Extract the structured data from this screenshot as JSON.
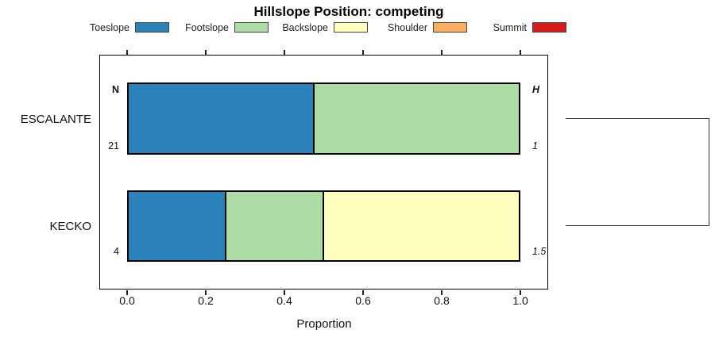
{
  "chart_data": {
    "type": "bar",
    "orientation": "horizontal",
    "stacked": true,
    "title": "Hillslope Position: competing",
    "xlabel": "Proportion",
    "xlim": [
      0,
      1
    ],
    "x_ticks": [
      0.0,
      0.2,
      0.4,
      0.6,
      0.8,
      1.0
    ],
    "x_tick_labels": [
      "0.0",
      "0.2",
      "0.4",
      "0.6",
      "0.8",
      "1.0"
    ],
    "grid": "off",
    "legend_position": "top",
    "categories": [
      "ESCALANTE",
      "KECKO"
    ],
    "series": [
      {
        "name": "Toeslope",
        "color": "#2B83BA",
        "values": [
          0.476,
          0.25
        ]
      },
      {
        "name": "Footslope",
        "color": "#ABDDA4",
        "values": [
          0.524,
          0.25
        ]
      },
      {
        "name": "Backslope",
        "color": "#FFFFBF",
        "values": [
          0.0,
          0.5
        ]
      },
      {
        "name": "Shoulder",
        "color": "#FDAE61",
        "values": [
          0.0,
          0.0
        ]
      },
      {
        "name": "Summit",
        "color": "#D7191C",
        "values": [
          0.0,
          0.0
        ]
      }
    ],
    "annotations": {
      "n_header": "N",
      "h_header": "H",
      "rows": [
        {
          "name": "ESCALANTE",
          "n": "21",
          "h": "1"
        },
        {
          "name": "KECKO",
          "n": "4",
          "h": "1.5"
        }
      ]
    },
    "dendrogram": {
      "side": "right",
      "leaves": [
        "ESCALANTE",
        "KECKO"
      ]
    }
  }
}
